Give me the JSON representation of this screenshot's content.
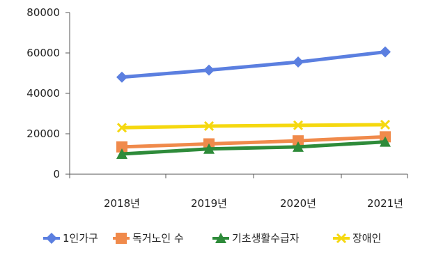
{
  "chart_data": {
    "type": "line",
    "title": "",
    "xlabel": "",
    "ylabel": "",
    "categories": [
      "2018년",
      "2019년",
      "2020년",
      "2021년"
    ],
    "ylim": [
      0,
      80000
    ],
    "yticks": [
      0,
      20000,
      40000,
      60000,
      80000
    ],
    "ytick_labels": [
      "0",
      "20000",
      "40000",
      "60000",
      "80000"
    ],
    "grid": false,
    "legend_position": "bottom",
    "series": [
      {
        "name": "1인가구",
        "values": [
          48000,
          51500,
          55500,
          60500
        ],
        "color": "#5b7fe0",
        "marker": "diamond"
      },
      {
        "name": "독거노인 수",
        "values": [
          13500,
          15000,
          16500,
          18500
        ],
        "color": "#f08a4b",
        "marker": "square"
      },
      {
        "name": "기초생활수급자",
        "values": [
          10000,
          12500,
          13500,
          16000
        ],
        "color": "#2e8b3a",
        "marker": "triangle"
      },
      {
        "name": "장애인",
        "values": [
          23000,
          23800,
          24200,
          24500
        ],
        "color": "#f5d80f",
        "marker": "x"
      }
    ]
  }
}
